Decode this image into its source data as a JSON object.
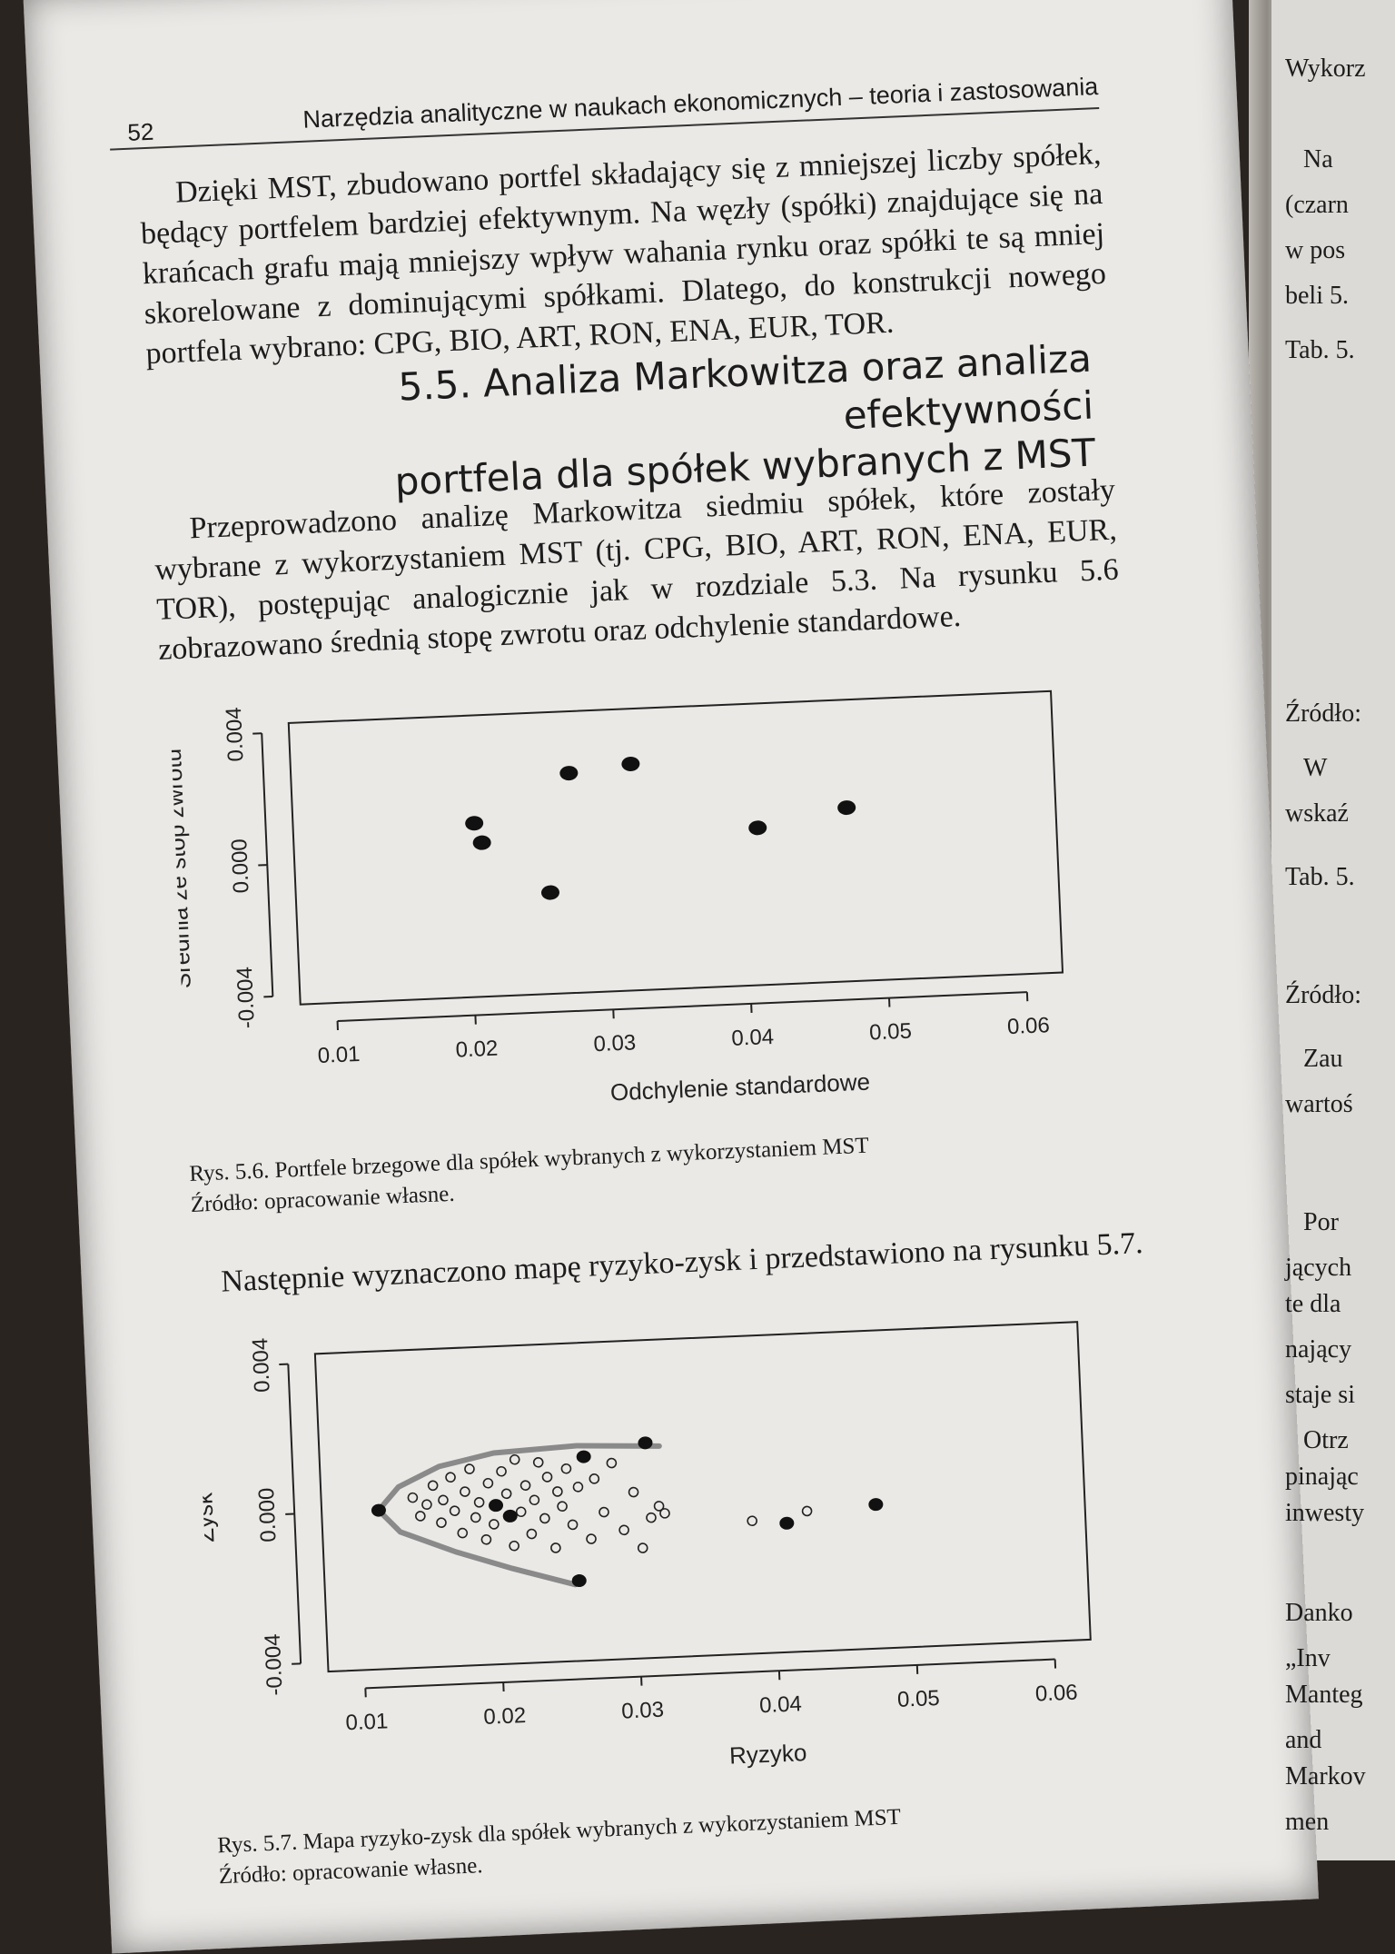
{
  "page": {
    "number": "52",
    "running_head": "Narzędzia analityczne w naukach ekonomicznych – teoria i zastosowania"
  },
  "paragraph1": "Dzięki MST, zbudowano portfel składający się z mniejszej liczby spółek, będący portfelem bardziej efektywnym. Na węzły (spółki) znajdujące się na krańcach grafu mają mniejszy wpływ wahania rynku oraz spółki te są mniej skorelowane z dominującymi spółkami. Dlatego, do konstrukcji nowego portfela wybrano: CPG, BIO, ART, RON, ENA, EUR, TOR.",
  "section": {
    "line1": "5.5. Analiza Markowitza oraz analiza efektywności",
    "line2": "portfela dla spółek wybranych z MST"
  },
  "paragraph2": "Przeprowadzono analizę Markowitza siedmiu spółek, które zostały wybrane z wykorzystaniem MST (tj. CPG, BIO, ART, RON, ENA, EUR, TOR), postępując analogicznie jak w rozdziale 5.3. Na rysunku 5.6 zobrazowano średnią stopę zwrotu oraz odchylenie standardowe.",
  "figure1": {
    "caption": "Rys. 5.6. Portfele brzegowe dla spółek wybranych z wykorzystaniem MST",
    "source": "Źródło: opracowanie własne.",
    "chart_data": {
      "type": "scatter",
      "xlabel": "Odchylenie standardowe",
      "ylabel": "Średnia ze stóp zwrotu",
      "xlim": [
        0.01,
        0.06
      ],
      "ylim": [
        -0.004,
        0.004
      ],
      "xticks": [
        "0.01",
        "0.02",
        "0.03",
        "0.04",
        "0.05",
        "0.06"
      ],
      "yticks": [
        "-0.004",
        "0.000",
        "0.004"
      ],
      "points": [
        {
          "x": 0.0205,
          "y": 0.001
        },
        {
          "x": 0.021,
          "y": 0.0004
        },
        {
          "x": 0.0258,
          "y": -0.0012
        },
        {
          "x": 0.0275,
          "y": 0.0024
        },
        {
          "x": 0.032,
          "y": 0.0026
        },
        {
          "x": 0.041,
          "y": 0.0005
        },
        {
          "x": 0.0475,
          "y": 0.001
        }
      ]
    }
  },
  "paragraph3": "Następnie wyznaczono mapę ryzyko-zysk i przedstawiono na rysunku 5.7.",
  "figure2": {
    "caption": "Rys. 5.7. Mapa ryzyko-zysk dla spółek wybranych z wykorzystaniem MST",
    "source": "Źródło: opracowanie własne.",
    "chart_data": {
      "type": "scatter",
      "xlabel": "Ryzyko",
      "ylabel": "Zysk",
      "xlim": [
        0.01,
        0.06
      ],
      "ylim": [
        -0.004,
        0.004
      ],
      "xticks": [
        "0.01",
        "0.02",
        "0.03",
        "0.04",
        "0.05",
        "0.06"
      ],
      "yticks": [
        "-0.004",
        "0.000",
        "0.004"
      ],
      "frontier": [
        {
          "x": 0.032,
          "y": 0.0014
        },
        {
          "x": 0.026,
          "y": 0.0015
        },
        {
          "x": 0.02,
          "y": 0.0014
        },
        {
          "x": 0.016,
          "y": 0.0011
        },
        {
          "x": 0.013,
          "y": 0.0006
        },
        {
          "x": 0.0115,
          "y": 0.0
        },
        {
          "x": 0.013,
          "y": -0.0006
        },
        {
          "x": 0.017,
          "y": -0.0012
        },
        {
          "x": 0.021,
          "y": -0.0017
        },
        {
          "x": 0.0255,
          "y": -0.0022
        }
      ],
      "filled_points": [
        {
          "x": 0.0115,
          "y": 0.0
        },
        {
          "x": 0.02,
          "y": 0.0
        },
        {
          "x": 0.021,
          "y": -0.0003
        },
        {
          "x": 0.0265,
          "y": 0.0012
        },
        {
          "x": 0.031,
          "y": 0.0015
        },
        {
          "x": 0.0258,
          "y": -0.0021
        },
        {
          "x": 0.041,
          "y": -0.0008
        },
        {
          "x": 0.0475,
          "y": -0.0004
        }
      ],
      "open_points": [
        {
          "x": 0.014,
          "y": 0.0003
        },
        {
          "x": 0.0145,
          "y": -0.0002
        },
        {
          "x": 0.015,
          "y": 0.0001
        },
        {
          "x": 0.0155,
          "y": 0.0006
        },
        {
          "x": 0.016,
          "y": -0.0004
        },
        {
          "x": 0.0162,
          "y": 0.0002
        },
        {
          "x": 0.0168,
          "y": 0.0008
        },
        {
          "x": 0.017,
          "y": -0.0001
        },
        {
          "x": 0.0175,
          "y": -0.0007
        },
        {
          "x": 0.0178,
          "y": 0.0004
        },
        {
          "x": 0.0182,
          "y": 0.001
        },
        {
          "x": 0.0185,
          "y": -0.0003
        },
        {
          "x": 0.0188,
          "y": 0.0001
        },
        {
          "x": 0.0192,
          "y": -0.0009
        },
        {
          "x": 0.0195,
          "y": 0.0006
        },
        {
          "x": 0.0198,
          "y": -0.0005
        },
        {
          "x": 0.0205,
          "y": 0.0009
        },
        {
          "x": 0.0208,
          "y": 0.0003
        },
        {
          "x": 0.0212,
          "y": -0.0011
        },
        {
          "x": 0.0215,
          "y": 0.0012
        },
        {
          "x": 0.0218,
          "y": -0.0002
        },
        {
          "x": 0.0222,
          "y": 0.0005
        },
        {
          "x": 0.0225,
          "y": -0.0008
        },
        {
          "x": 0.0228,
          "y": 0.0001
        },
        {
          "x": 0.0232,
          "y": 0.0011
        },
        {
          "x": 0.0235,
          "y": -0.0004
        },
        {
          "x": 0.0238,
          "y": 0.0007
        },
        {
          "x": 0.0242,
          "y": -0.0012
        },
        {
          "x": 0.0245,
          "y": 0.0003
        },
        {
          "x": 0.0248,
          "y": -0.0001
        },
        {
          "x": 0.0252,
          "y": 0.0009
        },
        {
          "x": 0.0255,
          "y": -0.0006
        },
        {
          "x": 0.026,
          "y": 0.0004
        },
        {
          "x": 0.0268,
          "y": -0.001
        },
        {
          "x": 0.0272,
          "y": 0.0006
        },
        {
          "x": 0.0278,
          "y": -0.0003
        },
        {
          "x": 0.0285,
          "y": 0.001
        },
        {
          "x": 0.0292,
          "y": -0.0008
        },
        {
          "x": 0.03,
          "y": 0.0002
        },
        {
          "x": 0.0305,
          "y": -0.0013
        },
        {
          "x": 0.0312,
          "y": -0.0005
        },
        {
          "x": 0.0318,
          "y": -0.0002
        },
        {
          "x": 0.0322,
          "y": -0.0004
        },
        {
          "x": 0.0385,
          "y": -0.0007
        },
        {
          "x": 0.0425,
          "y": -0.0005
        }
      ]
    }
  },
  "right_page": {
    "lines": [
      "Wykorz",
      "Na",
      "(czarn",
      "w pos",
      "beli 5.",
      "Tab. 5.",
      "Źródło:",
      "W",
      "wskaź",
      "Tab. 5.",
      "Źródło:",
      "Zau",
      "wartoś",
      "Por",
      "jących",
      "te dla",
      "nający",
      "staje si",
      "Otrz",
      "pinając",
      "inwesty",
      "Danko",
      "„Inv",
      "Manteg",
      "and",
      "Markov",
      "men"
    ]
  }
}
